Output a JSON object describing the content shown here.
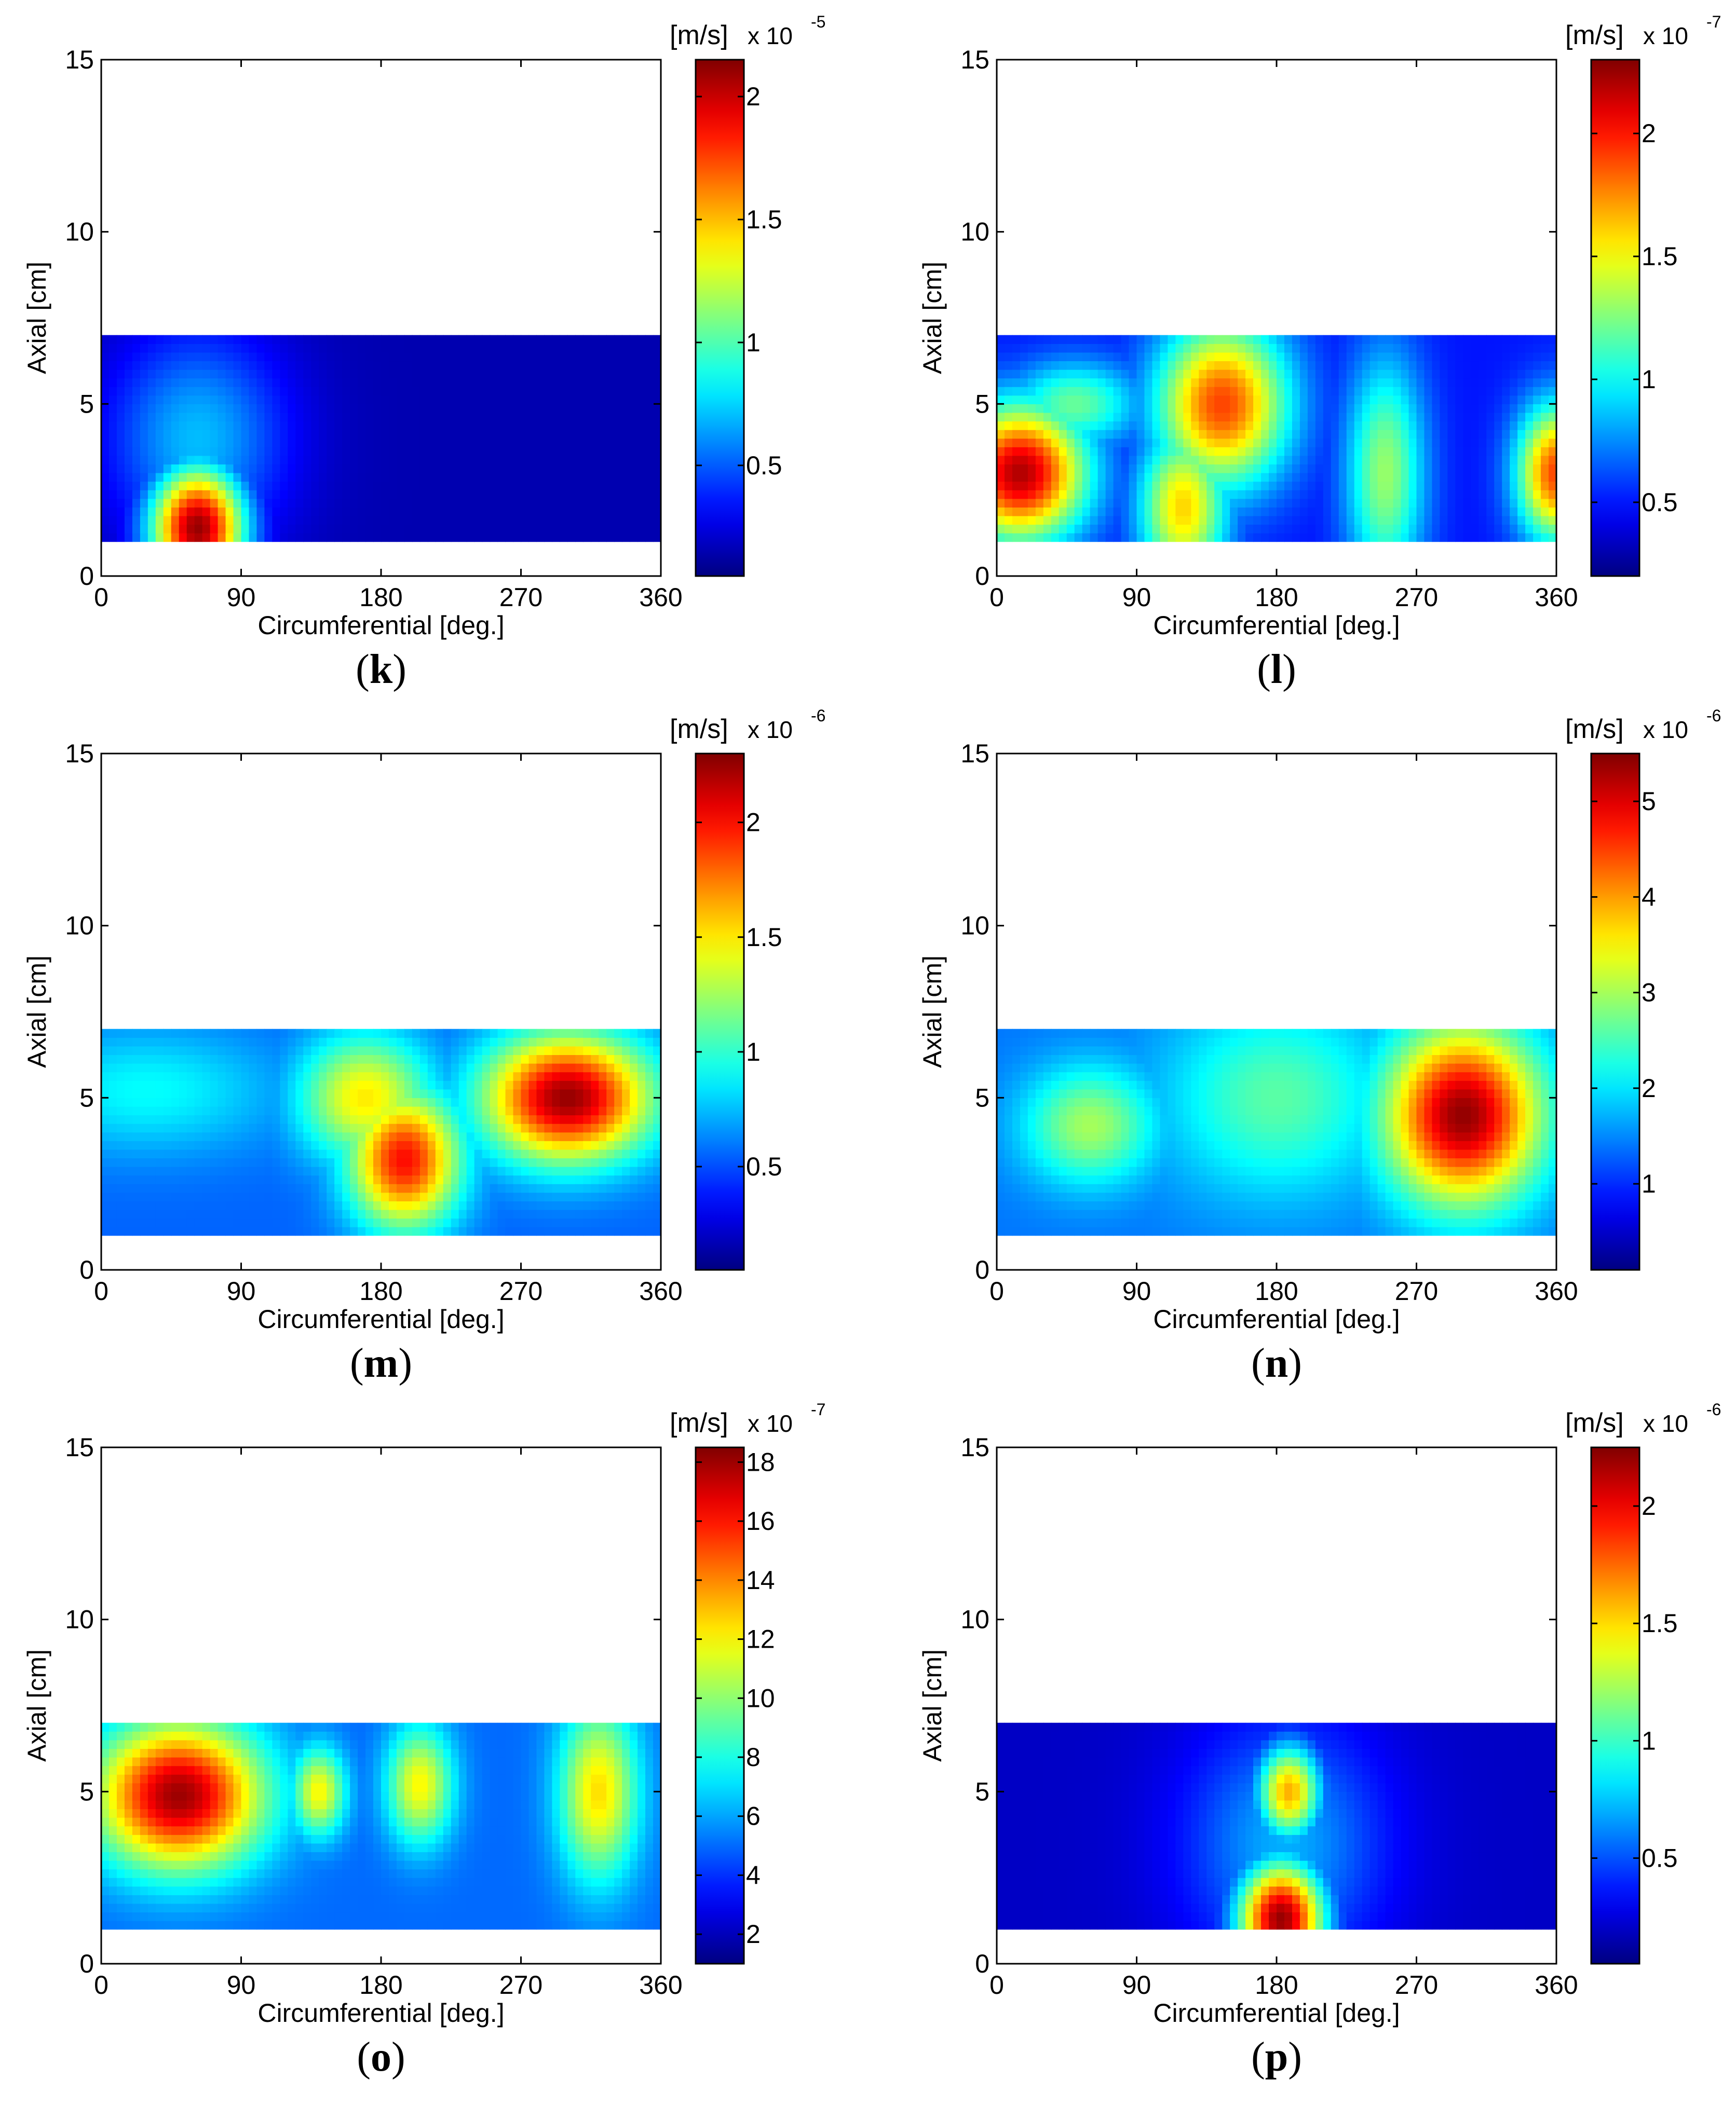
{
  "chart_data": [
    {
      "id": "k",
      "type": "heatmap",
      "panel_label": "k",
      "xlabel": "Circumferential [deg.]",
      "ylabel": "Axial [cm]",
      "xlim": [
        0,
        360
      ],
      "ylim": [
        0,
        15
      ],
      "xticks": [
        "0",
        "90",
        "180",
        "270",
        "360"
      ],
      "yticks": [
        "0",
        "5",
        "10",
        "15"
      ],
      "data_extent": {
        "x": [
          0,
          360
        ],
        "y": [
          1,
          7
        ]
      },
      "colorbar": {
        "unit": "[m/s]",
        "exponent_prefix": "x 10",
        "exponent": "-5",
        "min": 0.05,
        "max": 2.15,
        "ticks": [
          0.5,
          1,
          1.5,
          2
        ],
        "tick_labels": [
          "0.5",
          "1",
          "1.5",
          "2"
        ]
      },
      "hotspots": [
        {
          "x": 62,
          "y": 1.4,
          "value": 2.1,
          "sx": 22,
          "sy": 1.3
        },
        {
          "x": 62,
          "y": 4.0,
          "value": 0.7,
          "sx": 40,
          "sy": 2.2
        }
      ],
      "base_value": 0.15
    },
    {
      "id": "l",
      "type": "heatmap",
      "panel_label": "l",
      "xlabel": "Circumferential [deg.]",
      "ylabel": "Axial [cm]",
      "xlim": [
        0,
        360
      ],
      "ylim": [
        0,
        15
      ],
      "xticks": [
        "0",
        "90",
        "180",
        "270",
        "360"
      ],
      "yticks": [
        "0",
        "5",
        "10",
        "15"
      ],
      "data_extent": {
        "x": [
          0,
          360
        ],
        "y": [
          1,
          7
        ]
      },
      "colorbar": {
        "unit": "[m/s]",
        "exponent_prefix": "x 10",
        "exponent": "-7",
        "min": 0.2,
        "max": 2.3,
        "ticks": [
          0.5,
          1,
          1.5,
          2
        ],
        "tick_labels": [
          "0.5",
          "1",
          "1.5",
          "2"
        ]
      },
      "hotspots": [
        {
          "x": 15,
          "y": 3.0,
          "value": 2.2,
          "sx": 30,
          "sy": 1.4
        },
        {
          "x": 50,
          "y": 5.0,
          "value": 1.2,
          "sx": 30,
          "sy": 0.9
        },
        {
          "x": 145,
          "y": 5.0,
          "value": 1.9,
          "sx": 30,
          "sy": 1.7
        },
        {
          "x": 120,
          "y": 2.0,
          "value": 1.6,
          "sx": 20,
          "sy": 1.6
        },
        {
          "x": 250,
          "y": 3.0,
          "value": 1.3,
          "sx": 18,
          "sy": 2.4
        },
        {
          "x": 360,
          "y": 3.0,
          "value": 1.9,
          "sx": 18,
          "sy": 1.4
        }
      ],
      "base_value": 0.5
    },
    {
      "id": "m",
      "type": "heatmap",
      "panel_label": "m",
      "xlabel": "Circumferential [deg.]",
      "ylabel": "Axial [cm]",
      "xlim": [
        0,
        360
      ],
      "ylim": [
        0,
        15
      ],
      "xticks": [
        "0",
        "90",
        "180",
        "270",
        "360"
      ],
      "yticks": [
        "0",
        "5",
        "10",
        "15"
      ],
      "data_extent": {
        "x": [
          0,
          360
        ],
        "y": [
          1,
          7
        ]
      },
      "colorbar": {
        "unit": "[m/s]",
        "exponent_prefix": "x 10",
        "exponent": "-6",
        "min": 0.05,
        "max": 2.3,
        "ticks": [
          0.5,
          1,
          1.5,
          2
        ],
        "tick_labels": [
          "0.5",
          "1",
          "1.5",
          "2"
        ]
      },
      "hotspots": [
        {
          "x": 300,
          "y": 5.0,
          "value": 2.25,
          "sx": 38,
          "sy": 1.3
        },
        {
          "x": 195,
          "y": 3.2,
          "value": 2.0,
          "sx": 25,
          "sy": 1.4
        },
        {
          "x": 170,
          "y": 5.0,
          "value": 1.5,
          "sx": 30,
          "sy": 1.3
        },
        {
          "x": 30,
          "y": 5.2,
          "value": 0.9,
          "sx": 60,
          "sy": 1.3
        }
      ],
      "base_value": 0.55
    },
    {
      "id": "n",
      "type": "heatmap",
      "panel_label": "n",
      "xlabel": "Circumferential [deg.]",
      "ylabel": "Axial [cm]",
      "xlim": [
        0,
        360
      ],
      "ylim": [
        0,
        15
      ],
      "xticks": [
        "0",
        "90",
        "180",
        "270",
        "360"
      ],
      "yticks": [
        "0",
        "5",
        "10",
        "15"
      ],
      "data_extent": {
        "x": [
          0,
          360
        ],
        "y": [
          1,
          7
        ]
      },
      "colorbar": {
        "unit": "[m/s]",
        "exponent_prefix": "x 10",
        "exponent": "-6",
        "min": 0.1,
        "max": 5.5,
        "ticks": [
          1,
          2,
          3,
          4,
          5
        ],
        "tick_labels": [
          "1",
          "2",
          "3",
          "4",
          "5"
        ]
      },
      "hotspots": [
        {
          "x": 300,
          "y": 4.5,
          "value": 5.4,
          "sx": 35,
          "sy": 1.8
        },
        {
          "x": 60,
          "y": 4.2,
          "value": 3.0,
          "sx": 30,
          "sy": 1.2
        },
        {
          "x": 180,
          "y": 5.0,
          "value": 2.6,
          "sx": 50,
          "sy": 2.0
        }
      ],
      "base_value": 1.4
    },
    {
      "id": "o",
      "type": "heatmap",
      "panel_label": "o",
      "xlabel": "Circumferential [deg.]",
      "ylabel": "Axial [cm]",
      "xlim": [
        0,
        360
      ],
      "ylim": [
        0,
        15
      ],
      "xticks": [
        "0",
        "90",
        "180",
        "270",
        "360"
      ],
      "yticks": [
        "0",
        "5",
        "10",
        "15"
      ],
      "data_extent": {
        "x": [
          0,
          360
        ],
        "y": [
          1,
          7
        ]
      },
      "colorbar": {
        "unit": "[m/s]",
        "exponent_prefix": "x 10",
        "exponent": "-7",
        "min": 1.0,
        "max": 18.5,
        "ticks": [
          2,
          4,
          6,
          8,
          10,
          12,
          14,
          16,
          18
        ],
        "tick_labels": [
          "2",
          "4",
          "6",
          "8",
          "10",
          "12",
          "14",
          "16",
          "18"
        ]
      },
      "hotspots": [
        {
          "x": 50,
          "y": 4.9,
          "value": 18.0,
          "sx": 38,
          "sy": 1.5
        },
        {
          "x": 140,
          "y": 5.0,
          "value": 12.0,
          "sx": 12,
          "sy": 0.9
        },
        {
          "x": 205,
          "y": 5.2,
          "value": 12.0,
          "sx": 15,
          "sy": 1.2
        },
        {
          "x": 320,
          "y": 5.0,
          "value": 12.5,
          "sx": 18,
          "sy": 1.8
        }
      ],
      "base_value": 5.0
    },
    {
      "id": "p",
      "type": "heatmap",
      "panel_label": "p",
      "xlabel": "Circumferential [deg.]",
      "ylabel": "Axial [cm]",
      "xlim": [
        0,
        360
      ],
      "ylim": [
        0,
        15
      ],
      "xticks": [
        "0",
        "90",
        "180",
        "270",
        "360"
      ],
      "yticks": [
        "0",
        "5",
        "10",
        "15"
      ],
      "data_extent": {
        "x": [
          0,
          360
        ],
        "y": [
          1,
          7
        ]
      },
      "colorbar": {
        "unit": "[m/s]",
        "exponent_prefix": "x 10",
        "exponent": "-6",
        "min": 0.05,
        "max": 2.25,
        "ticks": [
          0.5,
          1,
          1.5,
          2
        ],
        "tick_labels": [
          "0.5",
          "1",
          "1.5",
          "2"
        ]
      },
      "hotspots": [
        {
          "x": 183,
          "y": 1.3,
          "value": 2.2,
          "sx": 20,
          "sy": 1.2
        },
        {
          "x": 188,
          "y": 5.0,
          "value": 1.6,
          "sx": 15,
          "sy": 1.0
        },
        {
          "x": 185,
          "y": 3.5,
          "value": 0.7,
          "sx": 45,
          "sy": 2.5
        }
      ],
      "base_value": 0.2
    }
  ]
}
